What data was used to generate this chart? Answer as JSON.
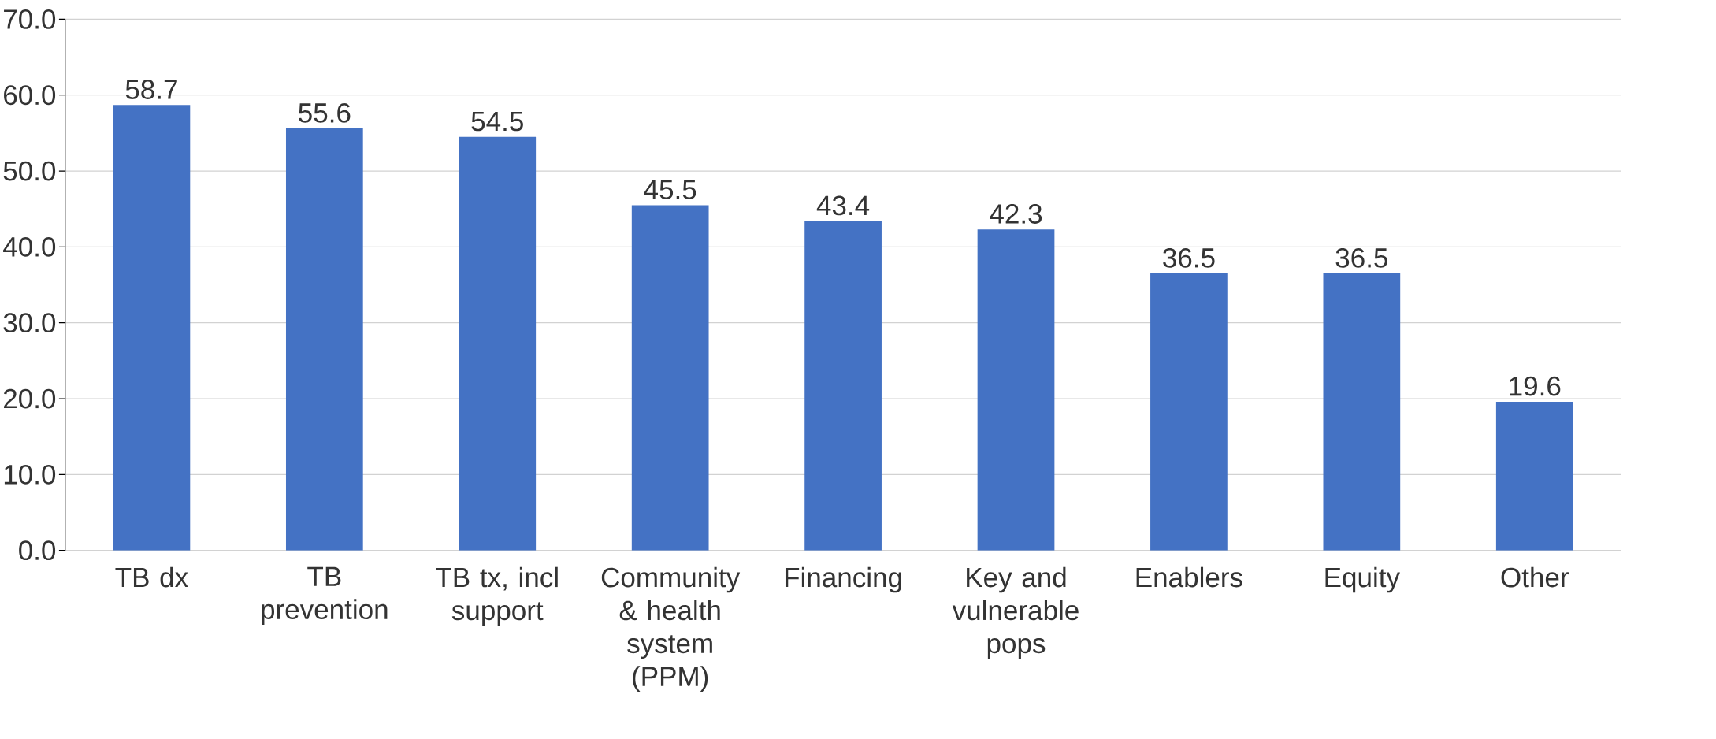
{
  "chart_data": {
    "type": "bar",
    "categories": [
      "TB dx",
      "TB prevention",
      "TB tx, incl support",
      "Community & health system (PPM)",
      "Financing",
      "Key and vulnerable pops",
      "Enablers",
      "Equity",
      "Other"
    ],
    "values": [
      58.7,
      55.6,
      54.5,
      45.5,
      43.4,
      42.3,
      36.5,
      36.5,
      19.6
    ],
    "color": "#4472c4",
    "ylim": [
      0,
      70
    ],
    "yticks": [
      {
        "value": 0,
        "label": "0.0"
      },
      {
        "value": 10,
        "label": "10.0"
      },
      {
        "value": 20,
        "label": "20.0"
      },
      {
        "value": 30,
        "label": "30.0"
      },
      {
        "value": 40,
        "label": "40.0"
      },
      {
        "value": 50,
        "label": "50.0"
      },
      {
        "value": 60,
        "label": "60.0"
      },
      {
        "value": 70,
        "label": "70.0"
      }
    ],
    "grid": "y",
    "data_labels": true
  }
}
